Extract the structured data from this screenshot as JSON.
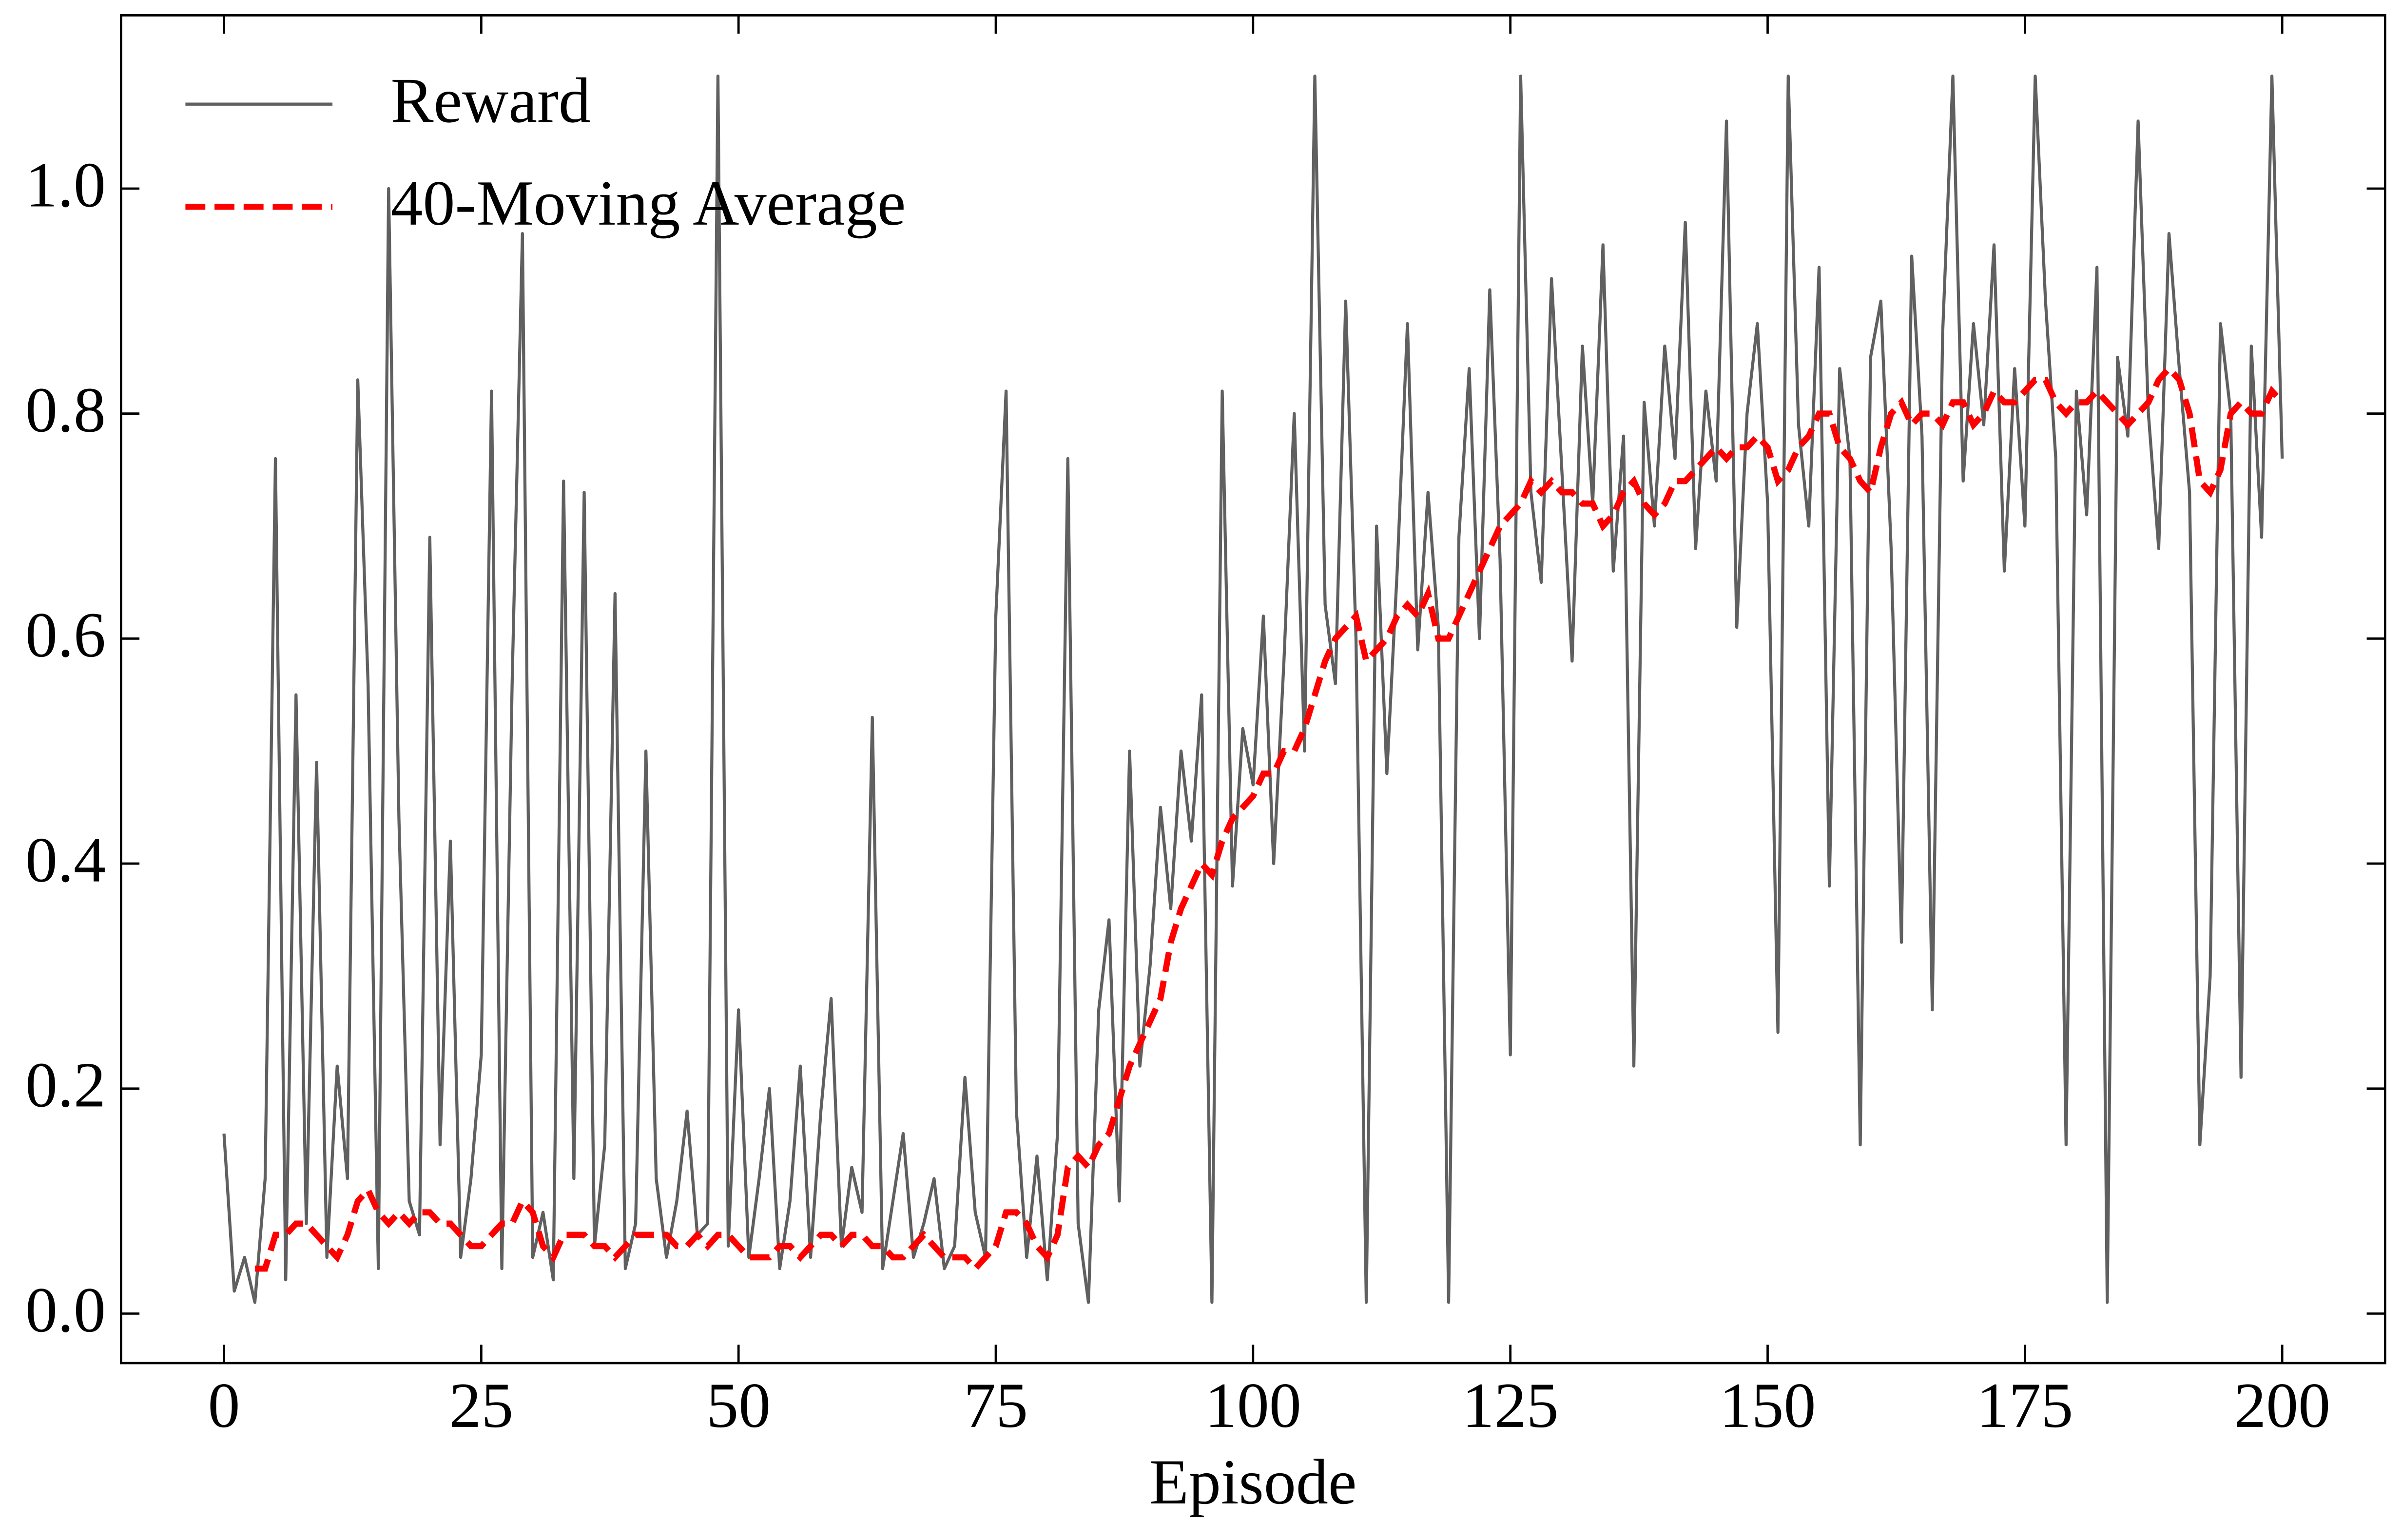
{
  "chart_data": {
    "type": "line",
    "xlabel": "Episode",
    "x": [
      0,
      1,
      2,
      3,
      4,
      5,
      6,
      7,
      8,
      9,
      10,
      11,
      12,
      13,
      14,
      15,
      16,
      17,
      18,
      19,
      20,
      21,
      22,
      23,
      24,
      25,
      26,
      27,
      28,
      29,
      30,
      31,
      32,
      33,
      34,
      35,
      36,
      37,
      38,
      39,
      40,
      41,
      42,
      43,
      44,
      45,
      46,
      47,
      48,
      49,
      50,
      51,
      52,
      53,
      54,
      55,
      56,
      57,
      58,
      59,
      60,
      61,
      62,
      63,
      64,
      65,
      66,
      67,
      68,
      69,
      70,
      71,
      72,
      73,
      74,
      75,
      76,
      77,
      78,
      79,
      80,
      81,
      82,
      83,
      84,
      85,
      86,
      87,
      88,
      89,
      90,
      91,
      92,
      93,
      94,
      95,
      96,
      97,
      98,
      99,
      100,
      101,
      102,
      103,
      104,
      105,
      106,
      107,
      108,
      109,
      110,
      111,
      112,
      113,
      114,
      115,
      116,
      117,
      118,
      119,
      120,
      121,
      122,
      123,
      124,
      125,
      126,
      127,
      128,
      129,
      130,
      131,
      132,
      133,
      134,
      135,
      136,
      137,
      138,
      139,
      140,
      141,
      142,
      143,
      144,
      145,
      146,
      147,
      148,
      149,
      150,
      151,
      152,
      153,
      154,
      155,
      156,
      157,
      158,
      159,
      160,
      161,
      162,
      163,
      164,
      165,
      166,
      167,
      168,
      169,
      170,
      171,
      172,
      173,
      174,
      175,
      176,
      177,
      178,
      179,
      180,
      181,
      182,
      183,
      184,
      185,
      186,
      187,
      188,
      189,
      190,
      191,
      192,
      193,
      194,
      195,
      196,
      197,
      198,
      199,
      200
    ],
    "series": [
      {
        "name": "Reward",
        "color": "#606060",
        "linestyle": "solid",
        "values": [
          0.16,
          0.02,
          0.05,
          0.01,
          0.12,
          0.76,
          0.03,
          0.55,
          0.08,
          0.49,
          0.05,
          0.22,
          0.12,
          0.83,
          0.56,
          0.04,
          1.0,
          0.44,
          0.1,
          0.07,
          0.69,
          0.15,
          0.42,
          0.05,
          0.12,
          0.23,
          0.82,
          0.04,
          0.56,
          0.96,
          0.05,
          0.09,
          0.03,
          0.74,
          0.12,
          0.73,
          0.06,
          0.15,
          0.64,
          0.04,
          0.08,
          0.5,
          0.12,
          0.05,
          0.1,
          0.18,
          0.07,
          0.08,
          1.1,
          0.06,
          0.27,
          0.05,
          0.12,
          0.2,
          0.04,
          0.1,
          0.22,
          0.05,
          0.18,
          0.28,
          0.06,
          0.13,
          0.09,
          0.53,
          0.04,
          0.1,
          0.16,
          0.05,
          0.08,
          0.12,
          0.04,
          0.06,
          0.21,
          0.09,
          0.05,
          0.62,
          0.82,
          0.18,
          0.05,
          0.14,
          0.03,
          0.16,
          0.76,
          0.08,
          0.01,
          0.27,
          0.35,
          0.1,
          0.5,
          0.22,
          0.31,
          0.45,
          0.36,
          0.5,
          0.42,
          0.55,
          0.01,
          0.82,
          0.38,
          0.52,
          0.47,
          0.62,
          0.4,
          0.58,
          0.8,
          0.5,
          1.1,
          0.63,
          0.56,
          0.9,
          0.6,
          0.01,
          0.7,
          0.48,
          0.66,
          0.88,
          0.59,
          0.73,
          0.61,
          0.01,
          0.69,
          0.84,
          0.6,
          0.91,
          0.67,
          0.23,
          1.1,
          0.73,
          0.65,
          0.92,
          0.75,
          0.58,
          0.86,
          0.72,
          0.95,
          0.66,
          0.78,
          0.22,
          0.81,
          0.7,
          0.86,
          0.76,
          0.97,
          0.68,
          0.82,
          0.74,
          1.06,
          0.61,
          0.8,
          0.88,
          0.72,
          0.25,
          1.1,
          0.79,
          0.7,
          0.93,
          0.38,
          0.84,
          0.76,
          0.15,
          0.85,
          0.9,
          0.68,
          0.33,
          0.94,
          0.78,
          0.27,
          0.87,
          1.1,
          0.74,
          0.88,
          0.79,
          0.95,
          0.66,
          0.84,
          0.7,
          1.1,
          0.9,
          0.76,
          0.15,
          0.82,
          0.71,
          0.93,
          0.01,
          0.85,
          0.78,
          1.06,
          0.8,
          0.68,
          0.96,
          0.84,
          0.73,
          0.15,
          0.3,
          0.88,
          0.8,
          0.21,
          0.86,
          0.69,
          1.1,
          0.76
        ]
      },
      {
        "name": "40-Moving Average",
        "color": "#ff0000",
        "linestyle": "dashed",
        "values": [
          null,
          null,
          null,
          0.04,
          0.04,
          0.07,
          0.07,
          0.08,
          0.08,
          0.07,
          0.06,
          0.05,
          0.07,
          0.1,
          0.11,
          0.09,
          0.08,
          0.09,
          0.08,
          0.09,
          0.09,
          0.08,
          0.08,
          0.07,
          0.06,
          0.06,
          0.07,
          0.08,
          0.08,
          0.1,
          0.09,
          0.06,
          0.05,
          0.07,
          0.07,
          0.07,
          0.06,
          0.06,
          0.05,
          0.06,
          0.07,
          0.07,
          0.07,
          0.07,
          0.06,
          0.06,
          0.07,
          0.06,
          0.07,
          0.07,
          0.06,
          0.05,
          0.05,
          0.05,
          0.06,
          0.06,
          0.05,
          0.06,
          0.07,
          0.07,
          0.06,
          0.07,
          0.07,
          0.06,
          0.06,
          0.05,
          0.05,
          0.06,
          0.07,
          0.06,
          0.05,
          0.05,
          0.05,
          0.04,
          0.05,
          0.06,
          0.09,
          0.09,
          0.08,
          0.06,
          0.05,
          0.07,
          0.13,
          0.14,
          0.13,
          0.15,
          0.16,
          0.19,
          0.22,
          0.24,
          0.26,
          0.28,
          0.33,
          0.36,
          0.38,
          0.4,
          0.39,
          0.42,
          0.44,
          0.45,
          0.46,
          0.48,
          0.48,
          0.5,
          0.5,
          0.52,
          0.55,
          0.58,
          0.6,
          0.61,
          0.62,
          0.58,
          0.59,
          0.6,
          0.62,
          0.63,
          0.62,
          0.64,
          0.6,
          0.6,
          0.62,
          0.64,
          0.66,
          0.68,
          0.7,
          0.71,
          0.72,
          0.74,
          0.73,
          0.74,
          0.73,
          0.73,
          0.72,
          0.72,
          0.7,
          0.71,
          0.73,
          0.74,
          0.72,
          0.71,
          0.72,
          0.74,
          0.74,
          0.75,
          0.76,
          0.77,
          0.76,
          0.77,
          0.77,
          0.78,
          0.77,
          0.74,
          0.75,
          0.77,
          0.78,
          0.8,
          0.8,
          0.77,
          0.76,
          0.74,
          0.73,
          0.77,
          0.8,
          0.81,
          0.79,
          0.8,
          0.8,
          0.79,
          0.81,
          0.81,
          0.79,
          0.8,
          0.82,
          0.81,
          0.81,
          0.82,
          0.83,
          0.83,
          0.81,
          0.8,
          0.81,
          0.81,
          0.82,
          0.81,
          0.8,
          0.79,
          0.8,
          0.81,
          0.83,
          0.84,
          0.83,
          0.8,
          0.74,
          0.73,
          0.75,
          0.8,
          0.81,
          0.8,
          0.8,
          0.82,
          0.81
        ]
      }
    ],
    "xlim": [
      -10,
      210
    ],
    "ylim": [
      -0.044,
      1.154
    ],
    "xticks": [
      0,
      25,
      50,
      75,
      100,
      125,
      150,
      175,
      200
    ],
    "yticks": [
      {
        "value": 0,
        "label": "0.0"
      },
      {
        "value": 0.2,
        "label": "0.2"
      },
      {
        "value": 0.4,
        "label": "0.4"
      },
      {
        "value": 0.6,
        "label": "0.6"
      },
      {
        "value": 0.8,
        "label": "0.8"
      },
      {
        "value": 1.0,
        "label": "1.0"
      }
    ],
    "grid": false,
    "legend": "upper left"
  }
}
